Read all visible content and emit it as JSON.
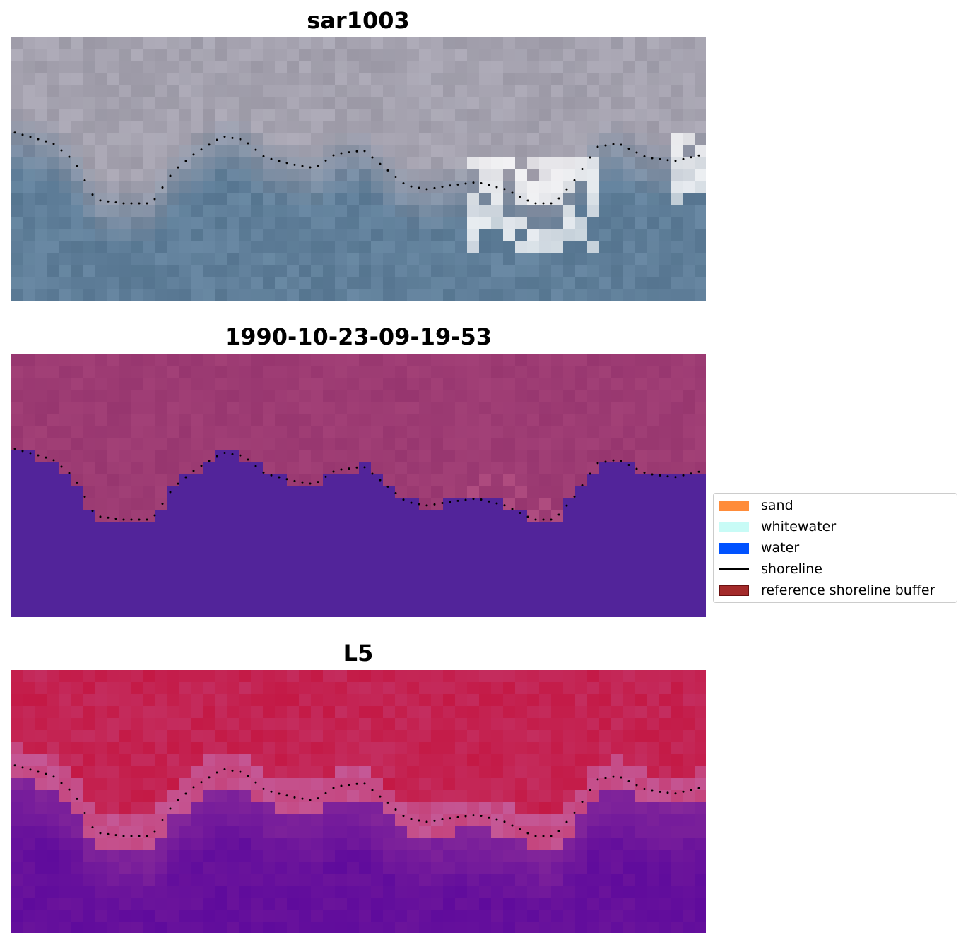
{
  "panels": [
    {
      "title": "sar1003",
      "style": "rgb"
    },
    {
      "title": "1990-10-23-09-19-53",
      "style": "classified"
    },
    {
      "title": "L5",
      "style": "index"
    }
  ],
  "legend": {
    "items": [
      {
        "label": "sand",
        "color": "#ff8c3a",
        "kind": "patch"
      },
      {
        "label": "whitewater",
        "color": "#c8fbf6",
        "kind": "patch"
      },
      {
        "label": "water",
        "color": "#0052ff",
        "kind": "patch"
      },
      {
        "label": "shoreline",
        "color": "#000000",
        "kind": "line"
      },
      {
        "label": "reference shoreline buffer",
        "color": "#a32a2a",
        "kind": "patch"
      }
    ]
  },
  "colors": {
    "rgb_land": "#a8a5b3",
    "rgb_water": "#5d7f9c",
    "rgb_white": "#ffffff",
    "class_land": "#97366f",
    "class_water": "#52249a",
    "class_light": "#c5608f",
    "index_land": "#c4123c",
    "index_edge": "#c55896",
    "index_water": "#5f0b9c"
  }
}
